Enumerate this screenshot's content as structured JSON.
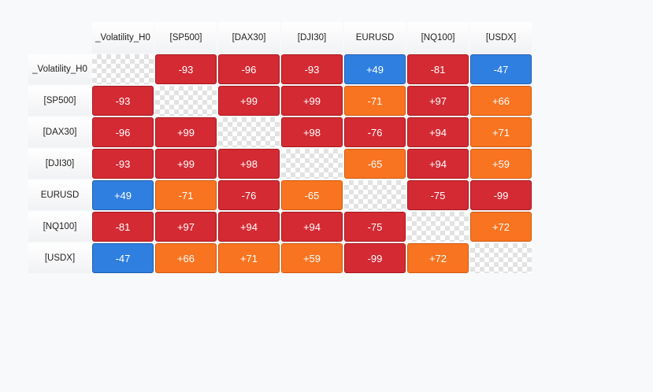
{
  "chart_data": {
    "type": "heatmap",
    "labels": [
      "_Volatility_H0",
      "[SP500]",
      "[DAX30]",
      "[DJI30]",
      "EURUSD",
      "[NQ100]",
      "[USDX]"
    ],
    "matrix": [
      [
        null,
        "-93",
        "-96",
        "-93",
        "+49",
        "-81",
        "-47"
      ],
      [
        "-93",
        null,
        "+99",
        "+99",
        "-71",
        "+97",
        "+66"
      ],
      [
        "-96",
        "+99",
        null,
        "+98",
        "-76",
        "+94",
        "+71"
      ],
      [
        "-93",
        "+99",
        "+98",
        null,
        "-65",
        "+94",
        "+59"
      ],
      [
        "+49",
        "-71",
        "-76",
        "-65",
        null,
        "-75",
        "-99"
      ],
      [
        "-81",
        "+97",
        "+94",
        "+94",
        "-75",
        null,
        "+72"
      ],
      [
        "-47",
        "+66",
        "+71",
        "+59",
        "-99",
        "+72",
        null
      ]
    ],
    "colors": {
      "strong": "#d42a33",
      "moderate": "#f97420",
      "weak": "#2f7fe0",
      "diagonal": "checkerboard"
    }
  }
}
